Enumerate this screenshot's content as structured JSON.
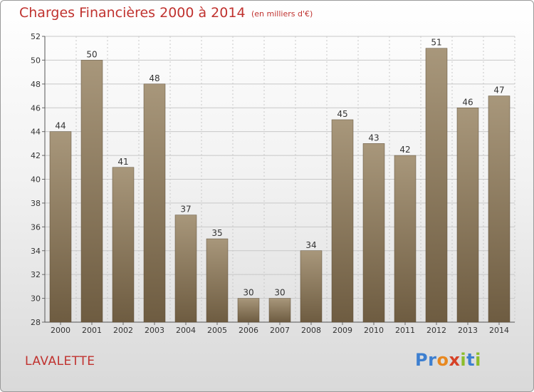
{
  "header": {
    "title": "Charges Financières 2000 à 2014",
    "subtitle": "(en milliers d'€)"
  },
  "footer": {
    "place": "LAVALETTE",
    "logo_letters": [
      {
        "ch": "P",
        "color": "#3d7fd0"
      },
      {
        "ch": "r",
        "color": "#3d7fd0"
      },
      {
        "ch": "o",
        "color": "#e8881f"
      },
      {
        "ch": "x",
        "color": "#d64126"
      },
      {
        "ch": "i",
        "color": "#8cbd2b"
      },
      {
        "ch": "t",
        "color": "#3d7fd0"
      },
      {
        "ch": "i",
        "color": "#8cbd2b"
      }
    ]
  },
  "colors": {
    "accent_text": "#c0322f",
    "bar_top": "#a8977b",
    "bar_bottom": "#6e5c41",
    "grid": "#c8c8c8"
  },
  "chart_data": {
    "type": "bar",
    "title": "Charges Financières 2000 à 2014",
    "subtitle": "(en milliers d'€)",
    "categories": [
      "2000",
      "2001",
      "2002",
      "2003",
      "2004",
      "2005",
      "2006",
      "2007",
      "2008",
      "2009",
      "2010",
      "2011",
      "2012",
      "2013",
      "2014"
    ],
    "values": [
      44,
      50,
      41,
      48,
      37,
      35,
      30,
      30,
      34,
      45,
      43,
      42,
      51,
      46,
      47
    ],
    "value_labels": [
      "44",
      "50",
      "41",
      "48",
      "37",
      "35",
      "30",
      "30",
      "34",
      "45",
      "43",
      "42",
      "51",
      "46",
      "47"
    ],
    "ylim": [
      28,
      52
    ],
    "yticks": [
      "28",
      "30",
      "32",
      "34",
      "36",
      "38",
      "40",
      "42",
      "44",
      "46",
      "48",
      "50",
      "52"
    ],
    "grid": true,
    "legend": "none",
    "xlabel": "",
    "ylabel": ""
  }
}
